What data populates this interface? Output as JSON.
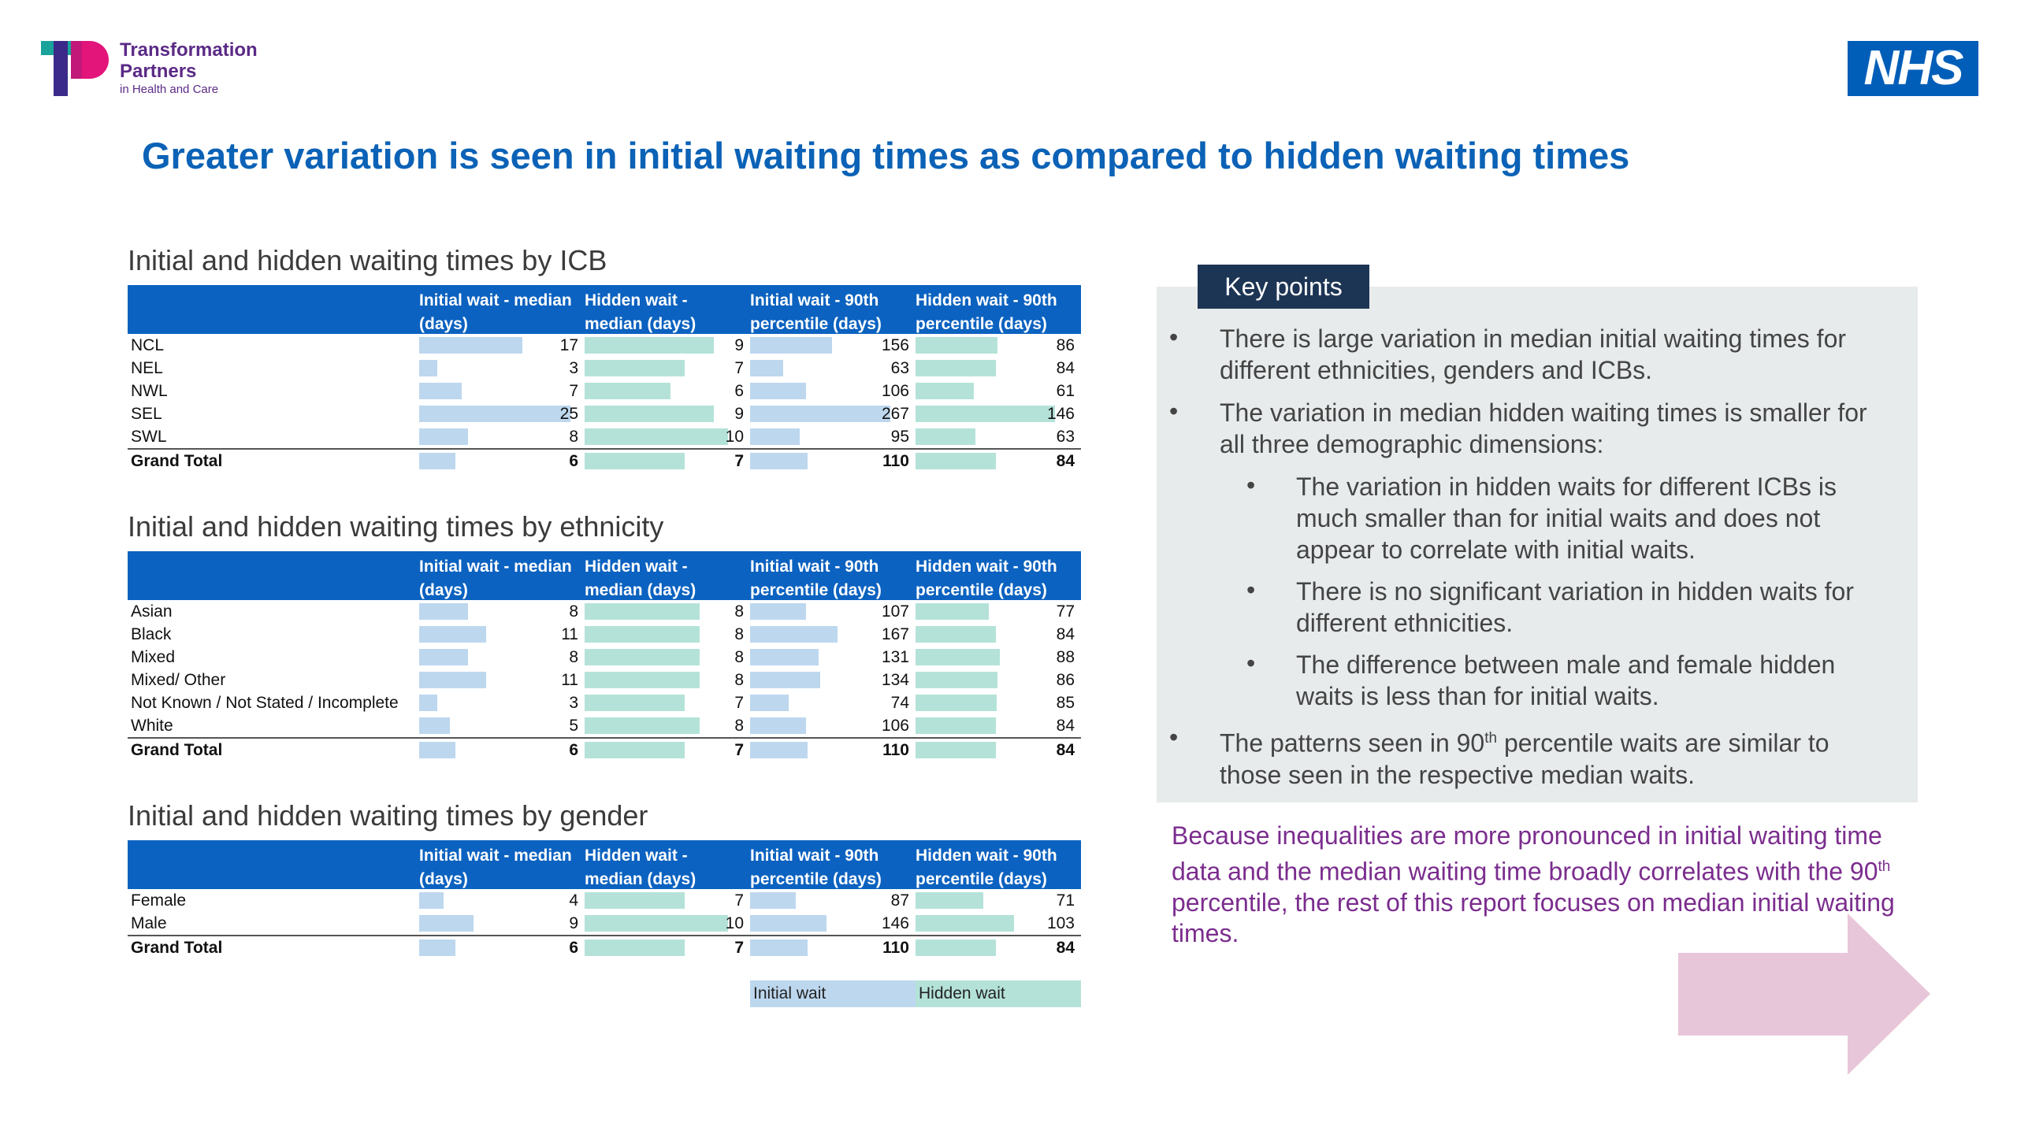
{
  "header": {
    "brand_line1": "Transformation",
    "brand_line2": "Partners",
    "brand_line3": "in Health and Care",
    "nhs_logo": "NHS",
    "title": "Greater variation is seen in initial waiting times as compared to hidden waiting times"
  },
  "columns": {
    "c1": "Initial wait - median (days)",
    "c2": "Hidden wait - median (days)",
    "c3": "Initial wait - 90th percentile (days)",
    "c4": "Hidden wait - 90th percentile (days)"
  },
  "tables": {
    "icb": {
      "title": "Initial and hidden waiting times by ICB",
      "rows": [
        {
          "label": "NCL",
          "initial_median": "17",
          "hidden_median": "9",
          "initial_p90": "156",
          "hidden_p90": "86"
        },
        {
          "label": "NEL",
          "initial_median": "3",
          "hidden_median": "7",
          "initial_p90": "63",
          "hidden_p90": "84"
        },
        {
          "label": "NWL",
          "initial_median": "7",
          "hidden_median": "6",
          "initial_p90": "106",
          "hidden_p90": "61"
        },
        {
          "label": "SEL",
          "initial_median": "25",
          "hidden_median": "9",
          "initial_p90": "267",
          "hidden_p90": "146"
        },
        {
          "label": "SWL",
          "initial_median": "8",
          "hidden_median": "10",
          "initial_p90": "95",
          "hidden_p90": "63"
        },
        {
          "label": "Grand Total",
          "initial_median": "6",
          "hidden_median": "7",
          "initial_p90": "110",
          "hidden_p90": "84"
        }
      ]
    },
    "ethnicity": {
      "title": "Initial and hidden waiting times by ethnicity",
      "rows": [
        {
          "label": "Asian",
          "initial_median": "8",
          "hidden_median": "8",
          "initial_p90": "107",
          "hidden_p90": "77"
        },
        {
          "label": "Black",
          "initial_median": "11",
          "hidden_median": "8",
          "initial_p90": "167",
          "hidden_p90": "84"
        },
        {
          "label": "Mixed",
          "initial_median": "8",
          "hidden_median": "8",
          "initial_p90": "131",
          "hidden_p90": "88"
        },
        {
          "label": "Mixed/ Other",
          "initial_median": "11",
          "hidden_median": "8",
          "initial_p90": "134",
          "hidden_p90": "86"
        },
        {
          "label": "Not Known / Not Stated / Incomplete",
          "initial_median": "3",
          "hidden_median": "7",
          "initial_p90": "74",
          "hidden_p90": "85"
        },
        {
          "label": "White",
          "initial_median": "5",
          "hidden_median": "8",
          "initial_p90": "106",
          "hidden_p90": "84"
        },
        {
          "label": "Grand Total",
          "initial_median": "6",
          "hidden_median": "7",
          "initial_p90": "110",
          "hidden_p90": "84"
        }
      ]
    },
    "gender": {
      "title": "Initial and hidden waiting times by gender",
      "rows": [
        {
          "label": "Female",
          "initial_median": "4",
          "hidden_median": "7",
          "initial_p90": "87",
          "hidden_p90": "71"
        },
        {
          "label": "Male",
          "initial_median": "9",
          "hidden_median": "10",
          "initial_p90": "146",
          "hidden_p90": "103"
        },
        {
          "label": "Grand Total",
          "initial_median": "6",
          "hidden_median": "7",
          "initial_p90": "110",
          "hidden_p90": "84"
        }
      ]
    }
  },
  "legend": {
    "initial": "Initial wait",
    "hidden": "Hidden wait"
  },
  "key_points": {
    "heading": "Key points",
    "b1": "There is large variation in median initial waiting times for different ethnicities, genders and ICBs.",
    "b2": "The variation in median hidden waiting times is smaller for all three demographic dimensions:",
    "b2a": "The variation in hidden waits for different ICBs is much smaller than for initial waits and does not appear to correlate with initial waits.",
    "b2b": "There is no significant variation in hidden waits for different ethnicities.",
    "b2c": "The difference between male and female hidden waits is less than for initial waits.",
    "b3_pre": "The patterns seen in 90",
    "b3_sup": "th",
    "b3_post": " percentile waits are similar to those seen in the respective median waits."
  },
  "conclusion": {
    "pre": "Because inequalities are more pronounced in initial waiting time data and the median waiting time broadly correlates with the 90",
    "sup": "th",
    "post": " percentile, the rest of this report focuses on median initial waiting times."
  },
  "colors": {
    "title_blue": "#0b62b6",
    "header_blue": "#0b62c0",
    "initial_bar": "#bdd7ee",
    "hidden_bar": "#b4e2d8",
    "key_panel": "#e7ebeb",
    "key_tab": "#1d3554",
    "conclusion_purple": "#7b2d8e",
    "arrow_pink": "#e8c6d9",
    "nhs_blue": "#005eb8"
  },
  "icons": {
    "tp_logo": "transformation-partners-logo",
    "nhs_logo": "nhs-logo",
    "arrow": "right-arrow-icon"
  }
}
